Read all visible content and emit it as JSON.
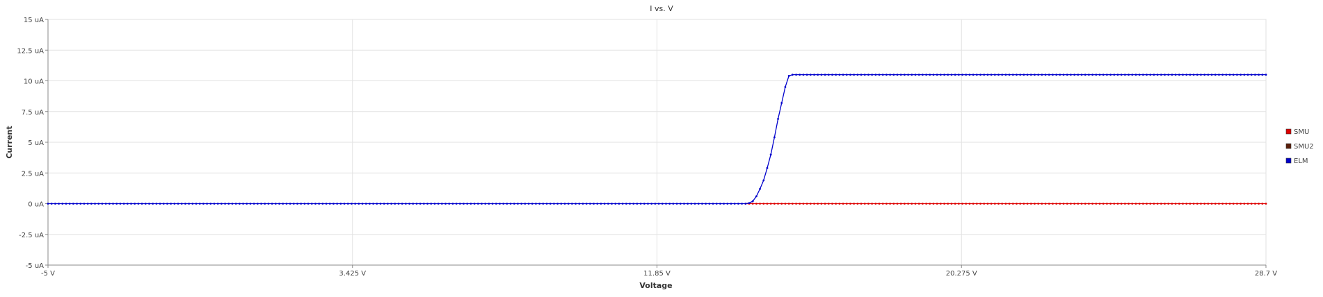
{
  "chart_data": {
    "type": "line",
    "title": "I vs. V",
    "xlabel": "Voltage",
    "ylabel": "Current",
    "xlim": [
      -5,
      28.7
    ],
    "ylim": [
      -5,
      15
    ],
    "x_ticks": [
      -5,
      3.425,
      11.85,
      20.275,
      28.7
    ],
    "x_tick_labels": [
      "-5 V",
      "3.425 V",
      "11.85 V",
      "20.275 V",
      "28.7 V"
    ],
    "y_ticks": [
      -5,
      -2.5,
      0,
      2.5,
      5,
      7.5,
      10,
      12.5,
      15
    ],
    "y_tick_labels": [
      "-5 uA",
      "-2.5 uA",
      "0 uA",
      "2.5 uA",
      "5 uA",
      "7.5 uA",
      "10 uA",
      "12.5 uA",
      "15 uA"
    ],
    "grid": true,
    "legend_position": "right",
    "units": {
      "x": "V",
      "y": "uA"
    },
    "series": [
      {
        "name": "SMU",
        "color": "#dd0000",
        "x_start": 14.3,
        "x_end": 28.7,
        "x_step": 0.1,
        "values_note": "",
        "constant_value": 0
      },
      {
        "name": "SMU2",
        "color": "#5a1e0a",
        "points": []
      },
      {
        "name": "ELM",
        "color": "#0000cc",
        "x_start": -5,
        "x_end": 28.7,
        "x_step": 0.1,
        "key_points": [
          [
            -5,
            0
          ],
          [
            14.3,
            0
          ],
          [
            14.4,
            0.05
          ],
          [
            14.5,
            0.2
          ],
          [
            14.6,
            0.6
          ],
          [
            14.7,
            1.2
          ],
          [
            14.8,
            1.9
          ],
          [
            14.9,
            2.9
          ],
          [
            15.0,
            4.0
          ],
          [
            15.1,
            5.4
          ],
          [
            15.2,
            6.9
          ],
          [
            15.3,
            8.2
          ],
          [
            15.4,
            9.5
          ],
          [
            15.5,
            10.4
          ],
          [
            15.6,
            10.5
          ],
          [
            28.7,
            10.5
          ]
        ]
      }
    ]
  }
}
